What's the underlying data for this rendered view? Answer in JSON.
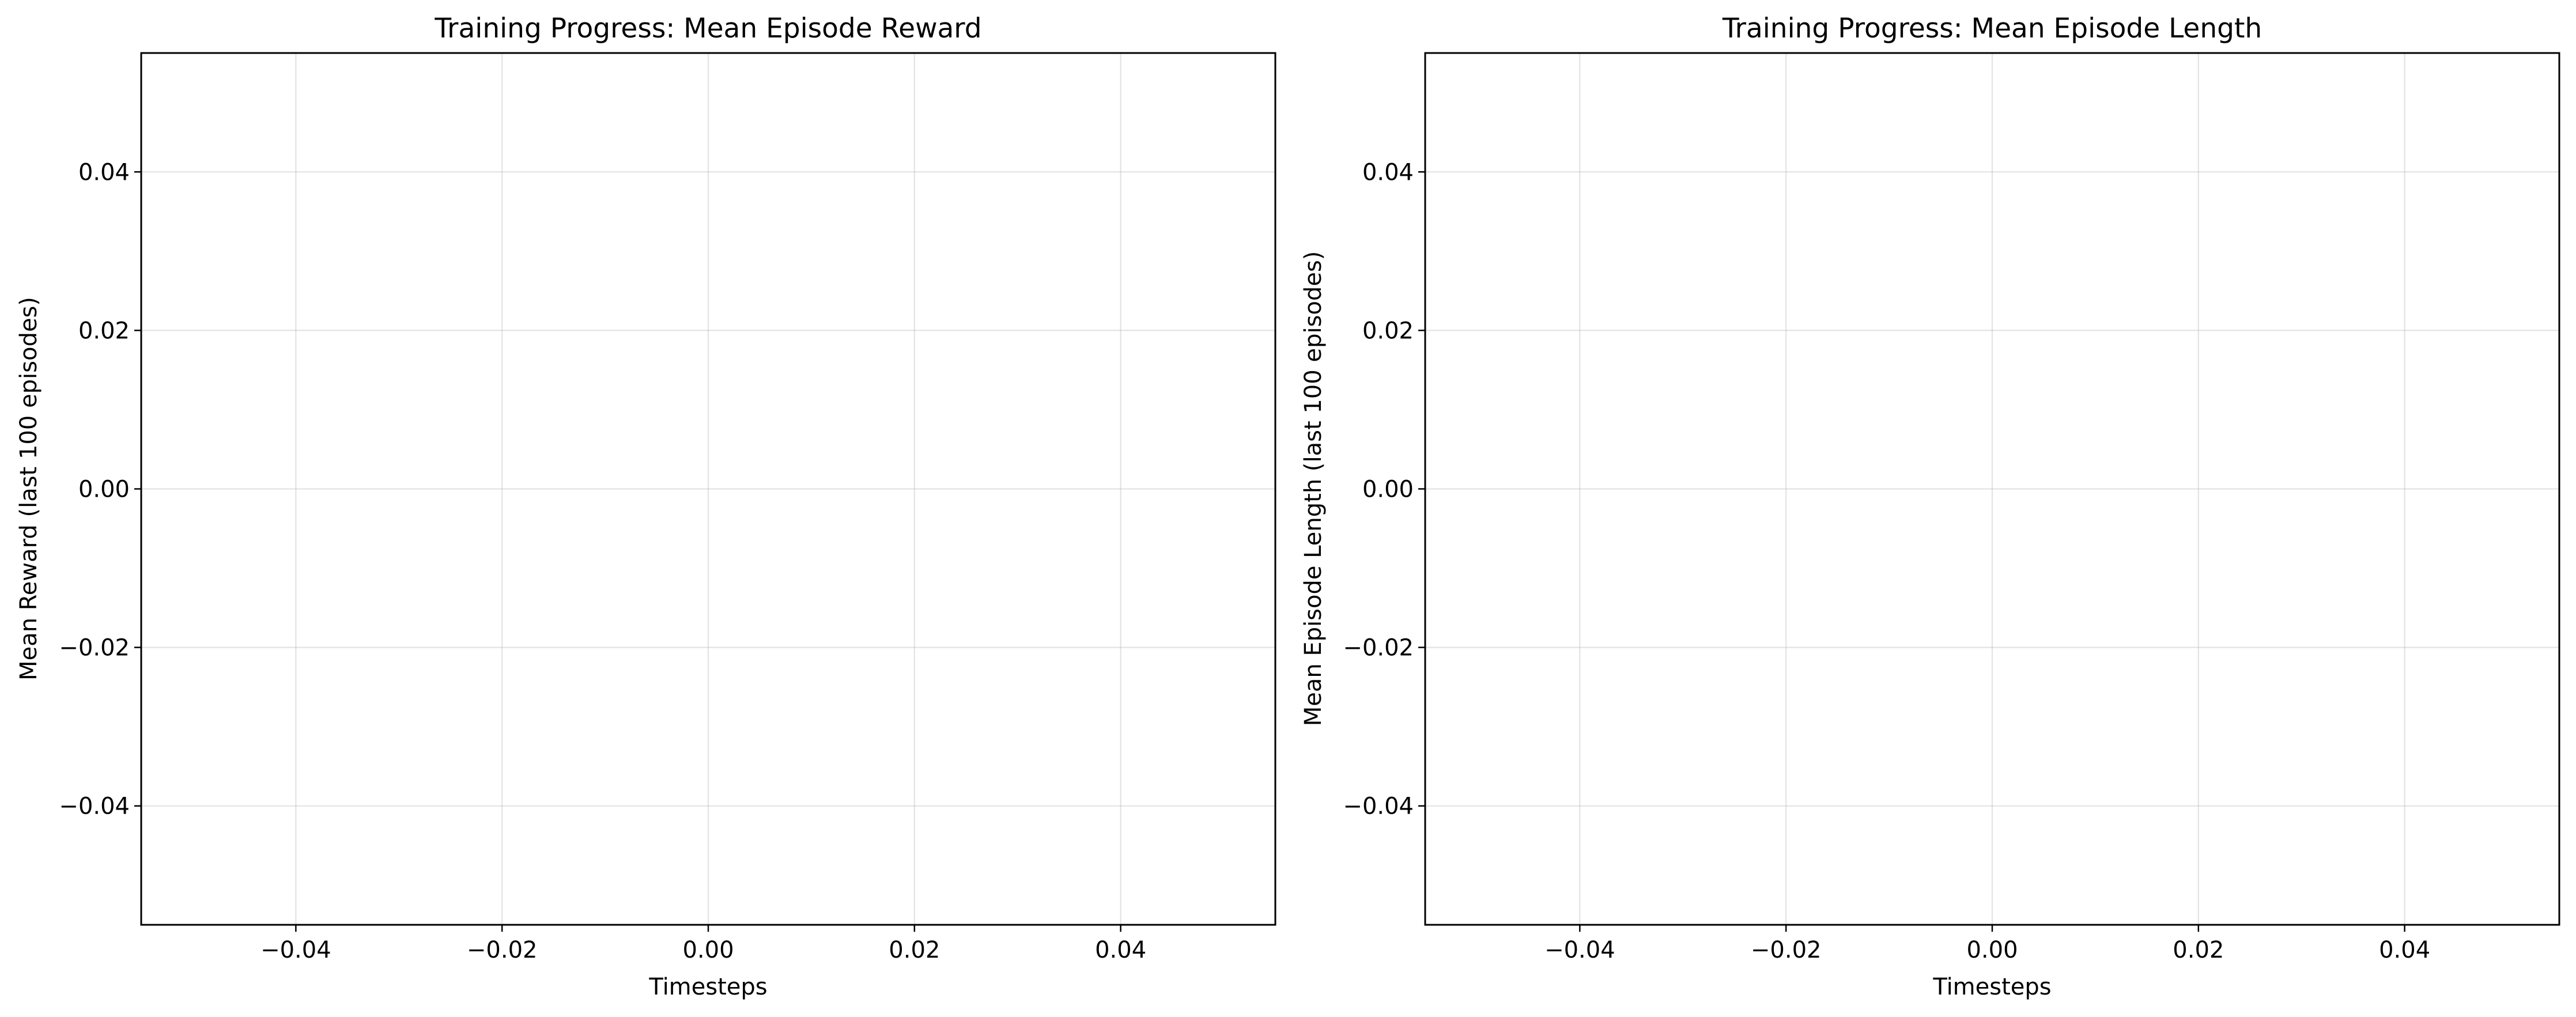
{
  "chart_data": [
    {
      "type": "line",
      "title": "Training Progress: Mean Episode Reward",
      "xlabel": "Timesteps",
      "ylabel": "Mean Reward (last 100 episodes)",
      "xlim": [
        -0.055,
        0.055
      ],
      "ylim": [
        -0.055,
        0.055
      ],
      "xticks": [
        -0.04,
        -0.02,
        0.0,
        0.02,
        0.04
      ],
      "yticks": [
        -0.04,
        -0.02,
        0.0,
        0.02,
        0.04
      ],
      "xtick_labels": [
        "−0.04",
        "−0.02",
        "0.00",
        "0.02",
        "0.04"
      ],
      "ytick_labels": [
        "−0.04",
        "−0.02",
        "0.00",
        "0.02",
        "0.04"
      ],
      "grid": true,
      "series": []
    },
    {
      "type": "line",
      "title": "Training Progress: Mean Episode Length",
      "xlabel": "Timesteps",
      "ylabel": "Mean Episode Length (last 100 episodes)",
      "xlim": [
        -0.055,
        0.055
      ],
      "ylim": [
        -0.055,
        0.055
      ],
      "xticks": [
        -0.04,
        -0.02,
        0.0,
        0.02,
        0.04
      ],
      "yticks": [
        -0.04,
        -0.02,
        0.0,
        0.02,
        0.04
      ],
      "xtick_labels": [
        "−0.04",
        "−0.02",
        "0.00",
        "0.02",
        "0.04"
      ],
      "ytick_labels": [
        "−0.04",
        "−0.02",
        "0.00",
        "0.02",
        "0.04"
      ],
      "grid": true,
      "series": []
    }
  ]
}
